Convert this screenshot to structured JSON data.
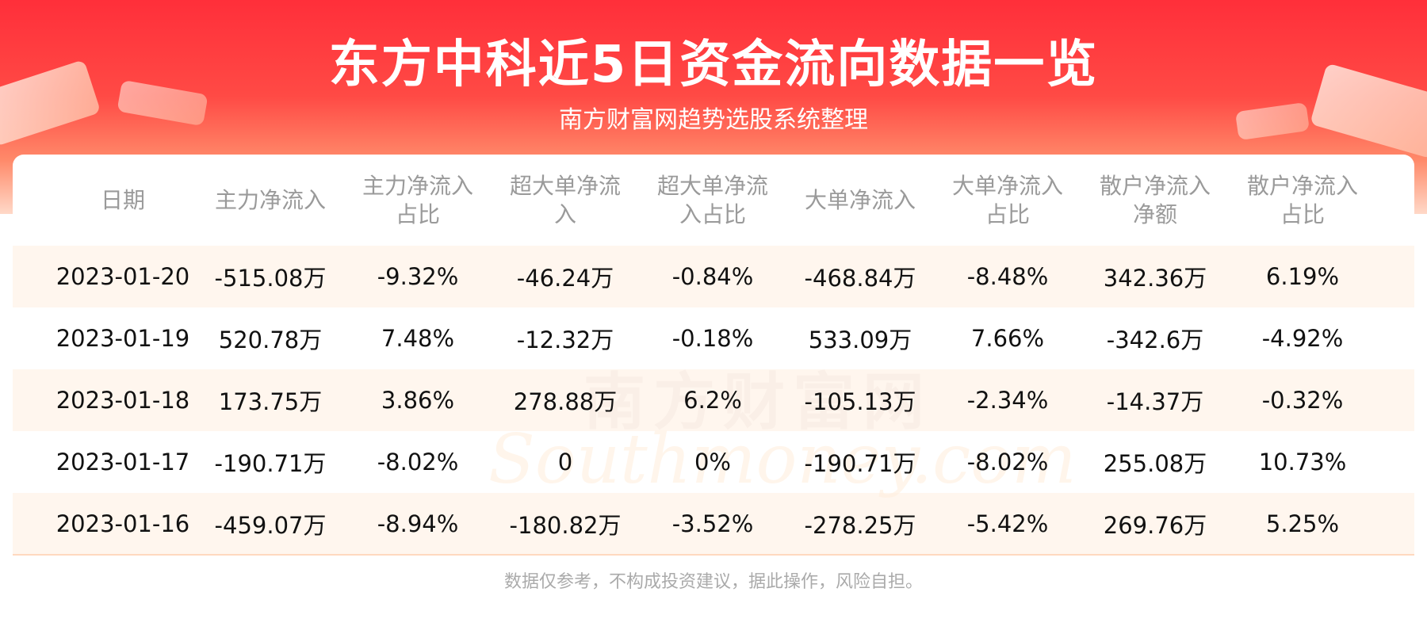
{
  "header": {
    "title": "东方中科近5日资金流向数据一览",
    "subtitle": "南方财富网趋势选股系统整理"
  },
  "table": {
    "columns": [
      "日期",
      "主力净流入",
      "主力净流入占比",
      "超大单净流入",
      "超大单净流入占比",
      "大单净流入",
      "大单净流入占比",
      "散户净流入净额",
      "散户净流入占比"
    ],
    "rows": [
      [
        "2023-01-20",
        "-515.08万",
        "-9.32%",
        "-46.24万",
        "-0.84%",
        "-468.84万",
        "-8.48%",
        "342.36万",
        "6.19%"
      ],
      [
        "2023-01-19",
        "520.78万",
        "7.48%",
        "-12.32万",
        "-0.18%",
        "533.09万",
        "7.66%",
        "-342.6万",
        "-4.92%"
      ],
      [
        "2023-01-18",
        "173.75万",
        "3.86%",
        "278.88万",
        "6.2%",
        "-105.13万",
        "-2.34%",
        "-14.37万",
        "-0.32%"
      ],
      [
        "2023-01-17",
        "-190.71万",
        "-8.02%",
        "0",
        "0%",
        "-190.71万",
        "-8.02%",
        "255.08万",
        "10.73%"
      ],
      [
        "2023-01-16",
        "-459.07万",
        "-8.94%",
        "-180.82万",
        "-3.52%",
        "-278.25万",
        "-5.42%",
        "269.76万",
        "5.25%"
      ]
    ]
  },
  "watermark": {
    "cn": "南方财富网",
    "en": "Southmoney.com"
  },
  "footer": {
    "note": "数据仅参考，不构成投资建议，据此操作，风险自担。"
  }
}
